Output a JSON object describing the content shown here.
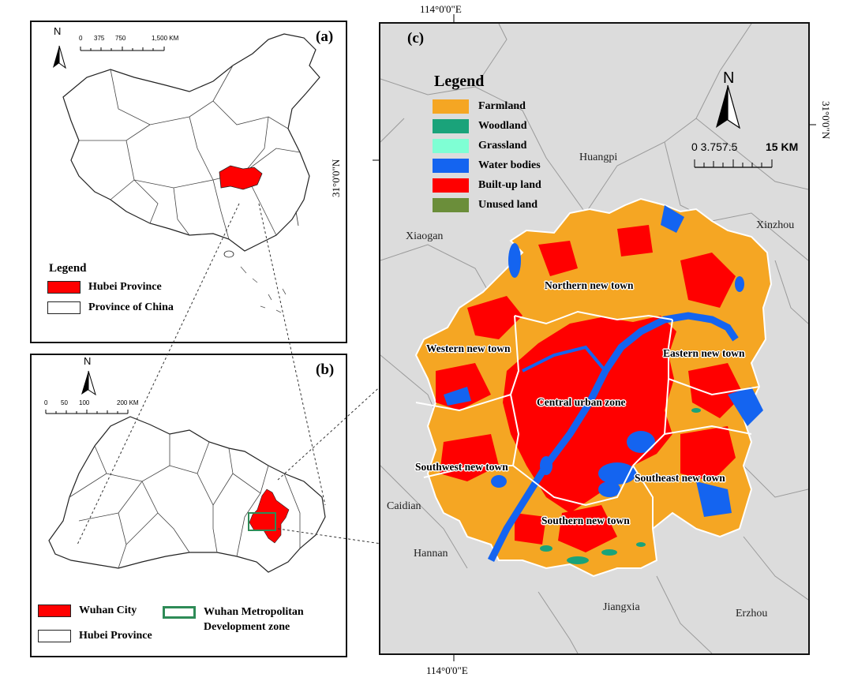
{
  "panel_a": {
    "label": "(a)",
    "north": "N",
    "scale": [
      "0",
      "375",
      "750",
      "1,500 KM"
    ],
    "legend_title": "Legend",
    "legend_items": [
      {
        "label": "Hubei Province",
        "color": "#ff0000"
      },
      {
        "label": "Province of  China",
        "color": "#ffffff"
      }
    ]
  },
  "panel_b": {
    "label": "(b)",
    "north": "N",
    "scale": [
      "0",
      "50",
      "100",
      "200 KM"
    ],
    "legend_items": [
      {
        "label": "Wuhan City",
        "color": "#ff0000"
      },
      {
        "label": "Hubei Province",
        "color": "#ffffff"
      },
      {
        "label": "Wuhan Metropolitan Development zone",
        "color": "#2e8b57"
      }
    ]
  },
  "panel_c": {
    "label": "(c)",
    "north": "N",
    "scale_left": "0 3.757.5",
    "scale_right": "15 KM",
    "legend_title": "Legend",
    "legend_items": [
      {
        "label": "Farmland",
        "color": "#f5a623"
      },
      {
        "label": "Woodland",
        "color": "#1aa37a"
      },
      {
        "label": "Grassland",
        "color": "#7fffd4"
      },
      {
        "label": "Water bodies",
        "color": "#1464f0"
      },
      {
        "label": "Built-up land",
        "color": "#ff0000"
      },
      {
        "label": "Unused land",
        "color": "#6b8e3a"
      }
    ],
    "places": [
      "Huangpi",
      "Xiaogan",
      "Xinzhou",
      "Caidian",
      "Hannan",
      "Jiangxia",
      "Erzhou"
    ],
    "zones": [
      "Northern new town",
      "Western new town",
      "Eastern new town",
      "Central urban zone",
      "Southwest new town",
      "Southeast new town",
      "Southern new town"
    ]
  },
  "coords": {
    "top": "114°0'0\"E",
    "bottom": "114°0'0\"E",
    "left": "31°0'0\"N",
    "right": "31°0'0\"N"
  }
}
